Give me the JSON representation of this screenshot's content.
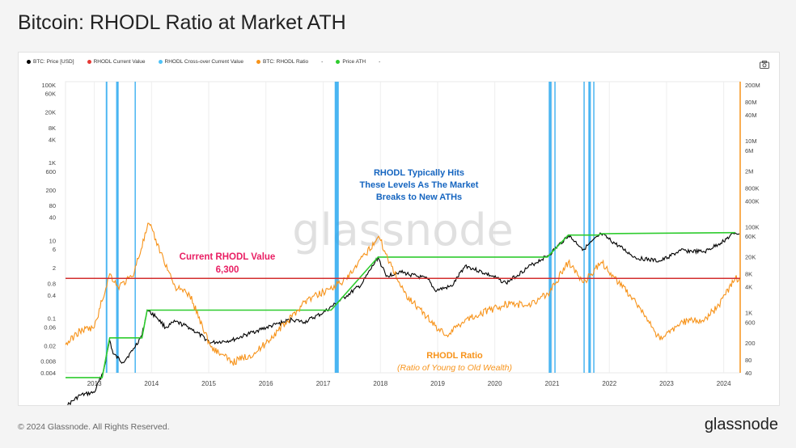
{
  "page": {
    "title": "Bitcoin: RHODL Ratio at Market ATH",
    "footer_copyright": "© 2024 Glassnode. All Rights Reserved.",
    "footer_brand": "glassnode",
    "watermark": "glassnode",
    "camera_icon": "camera-icon"
  },
  "legend": [
    {
      "label": "BTC: Price [USD]",
      "color": "#000000"
    },
    {
      "label": "RHODL Current Value",
      "color": "#e53935"
    },
    {
      "label": "RHODL Cross-over Current Value",
      "color": "#4fc3f7"
    },
    {
      "label": "BTC: RHODL Ratio",
      "color": "#f7931a"
    },
    {
      "label": "-",
      "color": ""
    },
    {
      "label": "Price ATH",
      "color": "#2ecc2e"
    },
    {
      "label": "-",
      "color": ""
    }
  ],
  "annotations": {
    "current_title": "Current RHODL Value",
    "current_value": "6,300",
    "typical_line1": "RHODL Typically Hits",
    "typical_line2": "These Levels As The Market",
    "typical_line3": "Breaks to New ATHs",
    "ratio_title": "RHODL Ratio",
    "ratio_subtitle": "(Ratio of Young to Old Wealth)"
  },
  "chart_data": {
    "type": "line",
    "title": "Bitcoin: RHODL Ratio at Market ATH",
    "x_ticks": [
      "2013",
      "2014",
      "2015",
      "2016",
      "2017",
      "2018",
      "2019",
      "2020",
      "2021",
      "2022",
      "2023",
      "2024"
    ],
    "x_range": [
      "2012-07-01",
      "2024-04-15"
    ],
    "y_left": {
      "label": "",
      "scale": "log",
      "ticks": [
        "100K",
        "60K",
        "20K",
        "8K",
        "4K",
        "1K",
        "600",
        "200",
        "80",
        "40",
        "10",
        "6",
        "2",
        "0.8",
        "0.4",
        "0.1",
        "0.06",
        "0.02",
        "0.008",
        "0.004"
      ],
      "tick_values": [
        100000,
        60000,
        20000,
        8000,
        4000,
        1000,
        600,
        200,
        80,
        40,
        10,
        6,
        2,
        0.8,
        0.4,
        0.1,
        0.06,
        0.02,
        0.008,
        0.004
      ]
    },
    "y_right": {
      "label": "",
      "scale": "log",
      "ticks": [
        "200M",
        "80M",
        "40M",
        "10M",
        "6M",
        "2M",
        "800K",
        "400K",
        "100K",
        "60K",
        "20K",
        "8K",
        "4K",
        "1K",
        "600",
        "200",
        "80",
        "40"
      ],
      "tick_values": [
        200000000,
        80000000,
        40000000,
        10000000,
        6000000,
        2000000,
        800000,
        400000,
        100000,
        60000,
        20000,
        8000,
        4000,
        1000,
        600,
        200,
        80,
        40
      ]
    },
    "rhodl_current_value": 6300,
    "series": [
      {
        "name": "BTC: Price [USD]",
        "color": "#000000",
        "axis": "right",
        "points": [
          [
            "2012-07-01",
            6.5
          ],
          [
            "2012-10-01",
            12
          ],
          [
            "2013-01-01",
            14
          ],
          [
            "2013-03-01",
            45
          ],
          [
            "2013-04-09",
            230
          ],
          [
            "2013-05-01",
            110
          ],
          [
            "2013-07-01",
            70
          ],
          [
            "2013-09-01",
            130
          ],
          [
            "2013-11-01",
            300
          ],
          [
            "2013-12-04",
            1150
          ],
          [
            "2014-02-01",
            800
          ],
          [
            "2014-04-01",
            450
          ],
          [
            "2014-06-01",
            620
          ],
          [
            "2014-09-01",
            450
          ],
          [
            "2015-01-15",
            200
          ],
          [
            "2015-06-01",
            230
          ],
          [
            "2015-11-01",
            380
          ],
          [
            "2016-06-15",
            700
          ],
          [
            "2016-09-01",
            600
          ],
          [
            "2017-01-01",
            1000
          ],
          [
            "2017-06-01",
            2500
          ],
          [
            "2017-09-01",
            4500
          ],
          [
            "2017-12-17",
            19500
          ],
          [
            "2018-02-06",
            7000
          ],
          [
            "2018-05-01",
            9000
          ],
          [
            "2018-11-01",
            6000
          ],
          [
            "2018-12-15",
            3300
          ],
          [
            "2019-04-01",
            4100
          ],
          [
            "2019-06-26",
            12500
          ],
          [
            "2019-12-15",
            7100
          ],
          [
            "2020-03-13",
            4900
          ],
          [
            "2020-08-01",
            11500
          ],
          [
            "2020-12-17",
            23000
          ],
          [
            "2021-04-14",
            63000
          ],
          [
            "2021-07-20",
            30000
          ],
          [
            "2021-11-10",
            68000
          ],
          [
            "2022-06-18",
            19000
          ],
          [
            "2022-11-21",
            15800
          ],
          [
            "2023-04-01",
            28000
          ],
          [
            "2023-09-01",
            26000
          ],
          [
            "2023-12-01",
            40000
          ],
          [
            "2024-03-14",
            72000
          ],
          [
            "2024-04-10",
            69000
          ]
        ]
      },
      {
        "name": "Price ATH",
        "color": "#2ecc2e",
        "axis": "right",
        "points": [
          [
            "2012-07-01",
            31
          ],
          [
            "2013-02-20",
            31
          ],
          [
            "2013-04-09",
            260
          ],
          [
            "2013-11-01",
            260
          ],
          [
            "2013-12-04",
            1150
          ],
          [
            "2017-02-20",
            1150
          ],
          [
            "2017-12-17",
            19700
          ],
          [
            "2020-12-01",
            19700
          ],
          [
            "2021-04-14",
            64000
          ],
          [
            "2021-10-20",
            64000
          ],
          [
            "2021-11-10",
            69000
          ],
          [
            "2024-03-14",
            73000
          ]
        ]
      },
      {
        "name": "BTC: RHODL Ratio",
        "color": "#f7931a",
        "axis": "right",
        "points": [
          [
            "2012-07-01",
            180
          ],
          [
            "2012-10-01",
            380
          ],
          [
            "2013-01-01",
            450
          ],
          [
            "2013-04-09",
            8000
          ],
          [
            "2013-06-01",
            4000
          ],
          [
            "2013-09-01",
            7000
          ],
          [
            "2013-12-15",
            120000
          ],
          [
            "2014-03-01",
            25000
          ],
          [
            "2014-06-01",
            4000
          ],
          [
            "2014-09-01",
            2600
          ],
          [
            "2015-01-15",
            160
          ],
          [
            "2015-06-01",
            70
          ],
          [
            "2015-11-01",
            120
          ],
          [
            "2016-06-15",
            800
          ],
          [
            "2016-09-01",
            1800
          ],
          [
            "2017-02-01",
            3500
          ],
          [
            "2017-06-01",
            6000
          ],
          [
            "2017-12-20",
            60000
          ],
          [
            "2018-03-01",
            15000
          ],
          [
            "2018-06-01",
            3000
          ],
          [
            "2018-12-15",
            500
          ],
          [
            "2019-03-01",
            300
          ],
          [
            "2019-06-26",
            700
          ],
          [
            "2020-03-13",
            1600
          ],
          [
            "2020-08-01",
            1500
          ],
          [
            "2020-12-17",
            3000
          ],
          [
            "2021-04-14",
            15000
          ],
          [
            "2021-07-20",
            5000
          ],
          [
            "2021-11-10",
            15000
          ],
          [
            "2022-06-18",
            1800
          ],
          [
            "2022-11-21",
            230
          ],
          [
            "2023-04-01",
            600
          ],
          [
            "2023-09-01",
            700
          ],
          [
            "2023-12-01",
            1500
          ],
          [
            "2024-03-14",
            6300
          ],
          [
            "2024-04-10",
            6300
          ]
        ]
      }
    ],
    "crossover_periods": [
      [
        "2013-03-15",
        "2013-03-25"
      ],
      [
        "2013-05-20",
        "2013-06-05"
      ],
      [
        "2013-09-15",
        "2013-09-18"
      ],
      [
        "2017-03-15",
        "2017-04-10"
      ],
      [
        "2020-12-10",
        "2020-12-28"
      ],
      [
        "2021-01-15",
        "2021-01-22"
      ],
      [
        "2021-07-20",
        "2021-07-24"
      ],
      [
        "2021-08-20",
        "2021-09-05"
      ],
      [
        "2021-09-20",
        "2021-09-25"
      ]
    ],
    "grid": true,
    "legend_position": "top-left"
  }
}
